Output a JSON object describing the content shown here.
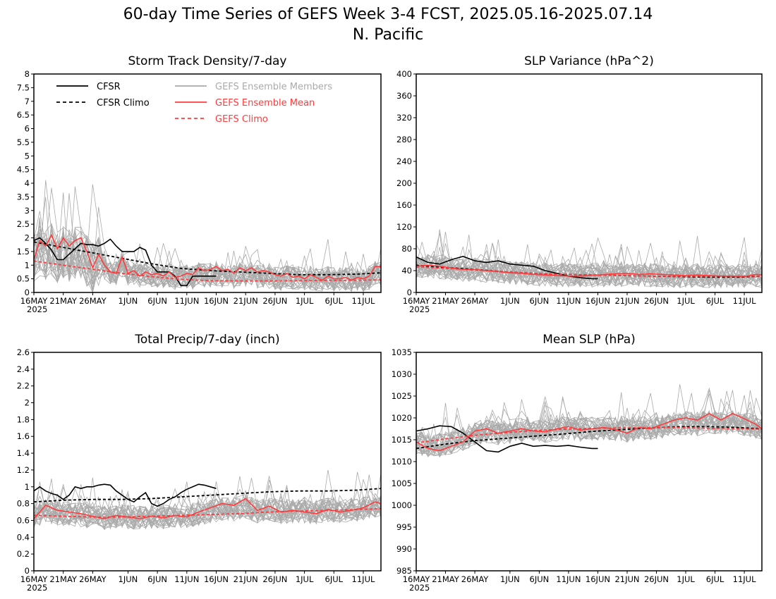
{
  "title_line1": "60-day Time Series of GEFS Week 3-4 FCST, 2025.05.16-2025.07.14",
  "title_line2": "N. Pacific",
  "colors": {
    "cfsr": "#000000",
    "members": "#aaaaaa",
    "ens_mean": "#ff3b3b",
    "gefs_climo": "#ff3b3b"
  },
  "legend": {
    "cfsr": "CFSR",
    "cfsr_climo": "CFSR Climo",
    "members": "GEFS Ensemble Members",
    "ens_mean": "GEFS Ensemble Mean",
    "gefs_climo": "GEFS Climo"
  },
  "x_ticks": [
    "16MAY",
    "21MAY",
    "26MAY",
    "1JUN",
    "6JUN",
    "11JUN",
    "16JUN",
    "21JUN",
    "26JUN",
    "1JUL",
    "6JUL",
    "11JUL"
  ],
  "x_year": "2025",
  "chart_data": [
    {
      "type": "line",
      "title": "Storm Track Density/7-day",
      "x_range": [
        "2025-05-16",
        "2025-07-14"
      ],
      "ylim": [
        0,
        8
      ],
      "y_ticks": [
        "0",
        "0.5",
        "1",
        "1.5",
        "2",
        "2.5",
        "3",
        "3.5",
        "4",
        "4.5",
        "5",
        "5.5",
        "6",
        "6.5",
        "7",
        "7.5",
        "8"
      ],
      "legend_position": "top-left",
      "series": [
        {
          "name": "CFSR",
          "style": "solid",
          "color": "#000000",
          "x_days": [
            0,
            1,
            2,
            3,
            4,
            5,
            6,
            7,
            8,
            9,
            10,
            11,
            12,
            13,
            14,
            15,
            16,
            17,
            18,
            19,
            20,
            21,
            22,
            23,
            24,
            25,
            26,
            27,
            28,
            29,
            30,
            31
          ],
          "values": [
            1.9,
            2.0,
            1.8,
            1.55,
            1.2,
            1.2,
            1.4,
            1.6,
            1.8,
            1.75,
            1.75,
            1.7,
            1.8,
            1.95,
            1.7,
            1.5,
            1.5,
            1.5,
            1.65,
            1.55,
            1.0,
            0.75,
            0.75,
            0.75,
            0.6,
            0.25,
            0.25,
            0.6,
            0.6,
            0.6,
            0.6,
            0.6
          ]
        },
        {
          "name": "CFSR Climo",
          "style": "dashed",
          "color": "#000000",
          "x_days": [
            0,
            5,
            10,
            15,
            20,
            25,
            30,
            35,
            40,
            45,
            50,
            55,
            59
          ],
          "values": [
            1.85,
            1.65,
            1.45,
            1.25,
            1.05,
            0.88,
            0.8,
            0.75,
            0.7,
            0.65,
            0.65,
            0.67,
            0.72
          ]
        },
        {
          "name": "GEFS Ensemble Mean",
          "style": "solid",
          "color": "#ff3b3b",
          "x_days": [
            0,
            1,
            2,
            3,
            4,
            5,
            6,
            7,
            8,
            9,
            10,
            11,
            12,
            13,
            14,
            15,
            16,
            17,
            18,
            19,
            20,
            21,
            22,
            23,
            24,
            25,
            26,
            27,
            28,
            29,
            30,
            31,
            32,
            33,
            34,
            35,
            36,
            37,
            38,
            39,
            40,
            41,
            42,
            43,
            44,
            45,
            46,
            47,
            48,
            49,
            50,
            51,
            52,
            53,
            54,
            55,
            56,
            57,
            58,
            59
          ],
          "values": [
            1.2,
            1.9,
            1.7,
            2.1,
            1.6,
            2.0,
            1.7,
            1.9,
            2.0,
            1.5,
            0.9,
            1.4,
            1.0,
            0.75,
            0.7,
            1.3,
            0.7,
            0.8,
            0.6,
            0.75,
            0.65,
            0.7,
            0.6,
            0.75,
            0.55,
            0.6,
            0.7,
            0.65,
            0.9,
            0.8,
            0.85,
            0.95,
            0.8,
            0.85,
            0.7,
            0.9,
            0.8,
            0.9,
            0.75,
            0.8,
            0.75,
            0.65,
            0.6,
            0.7,
            0.55,
            0.6,
            0.5,
            0.65,
            0.55,
            0.45,
            0.6,
            0.5,
            0.5,
            0.55,
            0.45,
            0.55,
            0.5,
            0.6,
            0.95,
            0.95
          ]
        },
        {
          "name": "GEFS Climo",
          "style": "dashed",
          "color": "#ff3b3b",
          "x_days": [
            0,
            5,
            10,
            15,
            20,
            25,
            30,
            35,
            40,
            45,
            50,
            55,
            59
          ],
          "values": [
            1.15,
            1.0,
            0.85,
            0.7,
            0.58,
            0.48,
            0.43,
            0.42,
            0.42,
            0.43,
            0.44,
            0.45,
            0.46
          ]
        }
      ]
    },
    {
      "type": "line",
      "title": "SLP Variance (hPa^2)",
      "x_range": [
        "2025-05-16",
        "2025-07-14"
      ],
      "ylim": [
        0,
        400
      ],
      "y_ticks": [
        "0",
        "40",
        "80",
        "120",
        "160",
        "200",
        "240",
        "280",
        "320",
        "360",
        "400"
      ],
      "series": [
        {
          "name": "CFSR",
          "style": "solid",
          "color": "#000000",
          "x_days": [
            0,
            2,
            4,
            6,
            8,
            10,
            12,
            14,
            16,
            18,
            20,
            22,
            24,
            26,
            28,
            30,
            31
          ],
          "values": [
            65,
            55,
            52,
            60,
            66,
            58,
            55,
            58,
            52,
            50,
            48,
            40,
            35,
            30,
            27,
            25,
            25
          ]
        },
        {
          "name": "CFSR Climo",
          "style": "dashed",
          "color": "#000000",
          "x_days": [
            0,
            5,
            10,
            15,
            20,
            25,
            30,
            35,
            40,
            45,
            50,
            55,
            59
          ],
          "values": [
            50,
            46,
            42,
            38,
            35,
            33,
            32,
            31,
            30,
            29,
            28,
            28,
            30
          ]
        },
        {
          "name": "GEFS Ensemble Mean",
          "style": "solid",
          "color": "#ff3b3b",
          "x_days": [
            0,
            2,
            4,
            6,
            8,
            10,
            12,
            14,
            16,
            18,
            20,
            22,
            24,
            26,
            28,
            30,
            32,
            34,
            36,
            38,
            40,
            42,
            44,
            46,
            48,
            50,
            52,
            54,
            56,
            58,
            59
          ],
          "values": [
            48,
            50,
            48,
            45,
            42,
            42,
            40,
            38,
            36,
            35,
            33,
            32,
            31,
            30,
            30,
            31,
            33,
            34,
            35,
            33,
            34,
            33,
            32,
            31,
            32,
            31,
            30,
            30,
            29,
            33,
            32
          ]
        },
        {
          "name": "GEFS Climo",
          "style": "dashed",
          "color": "#ff3b3b",
          "x_days": [
            0,
            5,
            10,
            15,
            20,
            25,
            30,
            35,
            40,
            45,
            50,
            55,
            59
          ],
          "values": [
            47,
            44,
            41,
            38,
            35,
            33,
            32,
            31,
            30,
            30,
            30,
            30,
            30
          ]
        }
      ]
    },
    {
      "type": "line",
      "title": "Total Precip/7-day (inch)",
      "x_range": [
        "2025-05-16",
        "2025-07-14"
      ],
      "ylim": [
        0,
        2.6
      ],
      "y_ticks": [
        "0",
        "0.2",
        "0.4",
        "0.6",
        "0.8",
        "1",
        "1.2",
        "1.4",
        "1.6",
        "1.8",
        "2",
        "2.2",
        "2.4",
        "2.6"
      ],
      "series": [
        {
          "name": "CFSR",
          "style": "solid",
          "color": "#000000",
          "x_days": [
            0,
            1,
            2,
            3,
            4,
            5,
            6,
            7,
            8,
            9,
            10,
            11,
            12,
            13,
            14,
            15,
            16,
            17,
            18,
            19,
            20,
            21,
            22,
            23,
            24,
            25,
            26,
            27,
            28,
            29,
            30,
            31
          ],
          "values": [
            0.95,
            1.0,
            0.95,
            0.92,
            0.9,
            0.85,
            0.9,
            1.0,
            0.98,
            1.0,
            1.0,
            1.02,
            1.03,
            1.02,
            0.95,
            0.9,
            0.85,
            0.82,
            0.88,
            0.93,
            0.8,
            0.77,
            0.8,
            0.85,
            0.88,
            0.93,
            0.97,
            1.0,
            1.03,
            1.02,
            1.0,
            0.98
          ]
        },
        {
          "name": "CFSR Climo",
          "style": "dashed",
          "color": "#000000",
          "x_days": [
            0,
            5,
            10,
            15,
            20,
            25,
            30,
            35,
            40,
            45,
            50,
            55,
            59
          ],
          "values": [
            0.82,
            0.84,
            0.85,
            0.85,
            0.86,
            0.88,
            0.9,
            0.92,
            0.94,
            0.95,
            0.95,
            0.96,
            0.98
          ]
        },
        {
          "name": "GEFS Ensemble Mean",
          "style": "solid",
          "color": "#ff3b3b",
          "x_days": [
            0,
            2,
            4,
            6,
            8,
            10,
            12,
            14,
            16,
            18,
            20,
            22,
            24,
            26,
            28,
            30,
            32,
            34,
            36,
            38,
            40,
            42,
            44,
            46,
            48,
            50,
            52,
            54,
            56,
            58,
            59
          ],
          "values": [
            0.62,
            0.78,
            0.72,
            0.7,
            0.68,
            0.65,
            0.62,
            0.66,
            0.64,
            0.62,
            0.65,
            0.63,
            0.66,
            0.64,
            0.7,
            0.75,
            0.8,
            0.78,
            0.86,
            0.72,
            0.77,
            0.7,
            0.72,
            0.7,
            0.68,
            0.73,
            0.7,
            0.72,
            0.75,
            0.82,
            0.8
          ]
        },
        {
          "name": "GEFS Climo",
          "style": "dashed",
          "color": "#ff3b3b",
          "x_days": [
            0,
            5,
            10,
            15,
            20,
            25,
            30,
            35,
            40,
            45,
            50,
            55,
            59
          ],
          "values": [
            0.66,
            0.65,
            0.64,
            0.64,
            0.65,
            0.66,
            0.67,
            0.68,
            0.7,
            0.71,
            0.72,
            0.73,
            0.74
          ]
        }
      ]
    },
    {
      "type": "line",
      "title": "Mean SLP (hPa)",
      "x_range": [
        "2025-05-16",
        "2025-07-14"
      ],
      "ylim": [
        985,
        1035
      ],
      "y_ticks": [
        "985",
        "990",
        "995",
        "1000",
        "1005",
        "1010",
        "1015",
        "1020",
        "1025",
        "1030",
        "1035"
      ],
      "series": [
        {
          "name": "CFSR",
          "style": "solid",
          "color": "#000000",
          "x_days": [
            0,
            2,
            4,
            6,
            8,
            10,
            12,
            14,
            16,
            18,
            20,
            22,
            24,
            26,
            28,
            30,
            31
          ],
          "values": [
            1017,
            1017.5,
            1018.2,
            1018,
            1016.5,
            1014.5,
            1012.5,
            1012.2,
            1013.5,
            1014.2,
            1013.5,
            1013.7,
            1013.5,
            1013.7,
            1013.3,
            1013,
            1013
          ]
        },
        {
          "name": "CFSR Climo",
          "style": "dashed",
          "color": "#000000",
          "x_days": [
            0,
            5,
            10,
            15,
            20,
            25,
            30,
            35,
            40,
            45,
            50,
            55,
            59
          ],
          "values": [
            1013,
            1014,
            1014.8,
            1015.3,
            1015.8,
            1016.3,
            1016.9,
            1017.3,
            1017.7,
            1018,
            1018,
            1017.8,
            1017.5
          ]
        },
        {
          "name": "GEFS Ensemble Mean",
          "style": "solid",
          "color": "#ff3b3b",
          "x_days": [
            0,
            2,
            4,
            6,
            8,
            10,
            12,
            14,
            16,
            18,
            20,
            22,
            24,
            26,
            28,
            30,
            32,
            34,
            36,
            38,
            40,
            42,
            44,
            46,
            48,
            50,
            52,
            54,
            56,
            58,
            59
          ],
          "values": [
            1014.5,
            1013,
            1012.5,
            1013.5,
            1014.5,
            1017,
            1017.5,
            1016.5,
            1017,
            1017.5,
            1017,
            1016.8,
            1017.5,
            1018,
            1017.2,
            1017.5,
            1017.8,
            1017.3,
            1016.5,
            1017.8,
            1017.5,
            1018.5,
            1019.5,
            1020,
            1019.5,
            1021,
            1019.5,
            1021,
            1019.8,
            1018.5,
            1017.5
          ]
        },
        {
          "name": "GEFS Climo",
          "style": "dashed",
          "color": "#ff3b3b",
          "x_days": [
            0,
            5,
            10,
            15,
            20,
            25,
            30,
            35,
            40,
            45,
            50,
            55,
            59
          ],
          "values": [
            1014.3,
            1015.2,
            1016,
            1016.6,
            1017.1,
            1017.4,
            1017.6,
            1017.7,
            1017.8,
            1017.8,
            1017.6,
            1017.5,
            1017.4
          ]
        }
      ]
    }
  ]
}
